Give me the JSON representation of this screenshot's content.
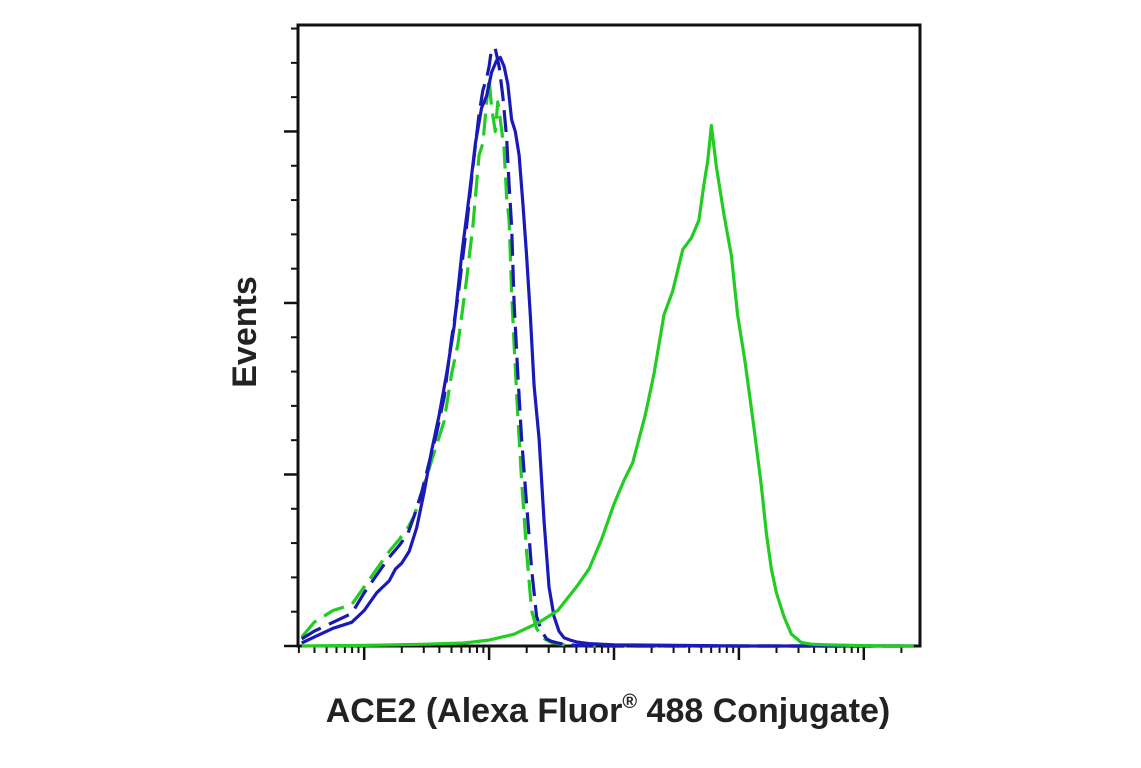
{
  "chart_data": {
    "type": "line",
    "title": "",
    "xlabel": "ACE2 (Alexa Fluor",
    "xlabel_sup": "®",
    "xlabel_suffix": " 488 Conjugate)",
    "ylabel": "Events",
    "xscale": "log",
    "x_decades": [
      1,
      2,
      3,
      4,
      5
    ],
    "xlim": [
      0.47,
      5.45
    ],
    "ylim": [
      0,
      1.05
    ],
    "y_major_ticks": [
      0,
      0.29,
      0.58,
      0.87
    ],
    "grid": false,
    "legend": "none",
    "series": [
      {
        "id": "dashed-green",
        "color": "#22cc22",
        "style": "dashed",
        "x": [
          0.5,
          0.6,
          0.75,
          0.9,
          1.0,
          1.1,
          1.2,
          1.28,
          1.35,
          1.4,
          1.46,
          1.52,
          1.58,
          1.64,
          1.7,
          1.75,
          1.82,
          1.87,
          1.92,
          1.95,
          1.98,
          2.0,
          2.02,
          2.05,
          2.07,
          2.09,
          2.12,
          2.14,
          2.16,
          2.18,
          2.2,
          2.23,
          2.26,
          2.3,
          2.34,
          2.38,
          2.42,
          2.46,
          2.5,
          2.55,
          2.6,
          2.7,
          2.8,
          3.0,
          3.5,
          4.0,
          5.4
        ],
        "y": [
          0.015,
          0.04,
          0.06,
          0.07,
          0.1,
          0.13,
          0.16,
          0.18,
          0.2,
          0.22,
          0.26,
          0.3,
          0.34,
          0.38,
          0.46,
          0.51,
          0.62,
          0.71,
          0.83,
          0.85,
          0.92,
          0.96,
          0.91,
          0.87,
          0.92,
          0.89,
          0.84,
          0.76,
          0.72,
          0.6,
          0.51,
          0.39,
          0.28,
          0.16,
          0.06,
          0.03,
          0.015,
          0.01,
          0.006,
          0.004,
          0.002,
          0.001,
          0.0,
          0.0,
          0.0,
          0.0,
          0.0
        ]
      },
      {
        "id": "dashed-blue",
        "color": "#1a1aaa",
        "style": "dashed",
        "x": [
          0.5,
          0.6,
          0.75,
          0.9,
          1.0,
          1.1,
          1.2,
          1.28,
          1.35,
          1.4,
          1.46,
          1.52,
          1.58,
          1.64,
          1.7,
          1.75,
          1.82,
          1.87,
          1.92,
          1.95,
          1.98,
          2.0,
          2.02,
          2.05,
          2.08,
          2.11,
          2.14,
          2.16,
          2.18,
          2.2,
          2.23,
          2.26,
          2.3,
          2.34,
          2.38,
          2.42,
          2.46,
          2.5,
          2.55,
          2.6,
          2.7,
          2.8,
          3.0,
          3.5,
          4.0,
          5.4
        ],
        "y": [
          0.012,
          0.025,
          0.04,
          0.055,
          0.09,
          0.12,
          0.15,
          0.17,
          0.19,
          0.22,
          0.26,
          0.31,
          0.36,
          0.42,
          0.52,
          0.59,
          0.71,
          0.81,
          0.9,
          0.94,
          0.96,
          0.98,
          1.01,
          1.01,
          0.98,
          0.93,
          0.86,
          0.78,
          0.71,
          0.58,
          0.46,
          0.35,
          0.24,
          0.13,
          0.05,
          0.025,
          0.012,
          0.008,
          0.005,
          0.003,
          0.001,
          0.0,
          0.0,
          0.0,
          0.0,
          0.0
        ]
      },
      {
        "id": "solid-blue",
        "color": "#1a1abb",
        "style": "solid",
        "x": [
          0.5,
          0.6,
          0.75,
          0.9,
          1.0,
          1.1,
          1.2,
          1.25,
          1.3,
          1.36,
          1.42,
          1.48,
          1.54,
          1.6,
          1.66,
          1.72,
          1.78,
          1.84,
          1.89,
          1.94,
          1.98,
          2.02,
          2.06,
          2.09,
          2.12,
          2.15,
          2.18,
          2.21,
          2.24,
          2.27,
          2.3,
          2.33,
          2.36,
          2.4,
          2.44,
          2.48,
          2.52,
          2.56,
          2.6,
          2.65,
          2.7,
          2.8,
          3.0,
          3.5,
          4.0,
          5.4
        ],
        "y": [
          0.005,
          0.015,
          0.03,
          0.04,
          0.06,
          0.09,
          0.11,
          0.13,
          0.14,
          0.16,
          0.2,
          0.26,
          0.33,
          0.39,
          0.46,
          0.54,
          0.66,
          0.76,
          0.85,
          0.91,
          0.93,
          0.97,
          0.99,
          0.995,
          0.98,
          0.95,
          0.89,
          0.87,
          0.83,
          0.75,
          0.66,
          0.56,
          0.44,
          0.35,
          0.21,
          0.1,
          0.05,
          0.025,
          0.014,
          0.01,
          0.007,
          0.004,
          0.002,
          0.001,
          0.0,
          0.0
        ]
      },
      {
        "id": "solid-green",
        "color": "#22cc22",
        "style": "solid",
        "x": [
          0.5,
          1.0,
          1.5,
          1.8,
          2.0,
          2.2,
          2.4,
          2.55,
          2.7,
          2.8,
          2.9,
          3.0,
          3.08,
          3.15,
          3.25,
          3.32,
          3.4,
          3.47,
          3.55,
          3.62,
          3.68,
          3.72,
          3.75,
          3.78,
          3.82,
          3.88,
          3.94,
          3.99,
          4.05,
          4.12,
          4.18,
          4.22,
          4.26,
          4.3,
          4.36,
          4.42,
          4.5,
          4.58,
          4.7,
          4.9,
          5.2,
          5.4
        ],
        "y": [
          0.0,
          0.001,
          0.003,
          0.005,
          0.01,
          0.02,
          0.04,
          0.06,
          0.1,
          0.13,
          0.18,
          0.24,
          0.28,
          0.31,
          0.39,
          0.46,
          0.56,
          0.6,
          0.67,
          0.69,
          0.72,
          0.78,
          0.82,
          0.88,
          0.81,
          0.73,
          0.66,
          0.56,
          0.48,
          0.37,
          0.27,
          0.19,
          0.13,
          0.09,
          0.05,
          0.02,
          0.006,
          0.003,
          0.002,
          0.001,
          0.0,
          0.0
        ]
      }
    ]
  }
}
